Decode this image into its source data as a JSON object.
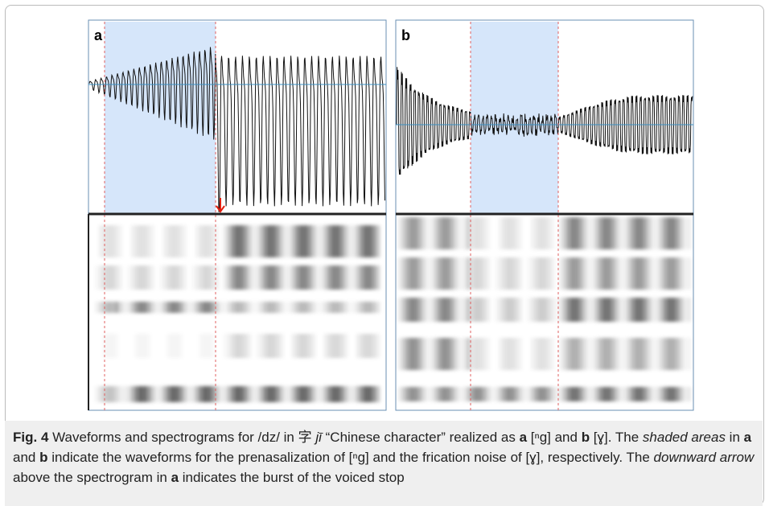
{
  "figure": {
    "panels": [
      {
        "label": "a"
      },
      {
        "label": "b"
      }
    ],
    "caption": {
      "parts": [
        "Fig. 4",
        " Waveforms and spectrograms for /dz/ in 字 ",
        "jī",
        " “Chinese character” realized as ",
        "a",
        " [ⁿg] and ",
        "b",
        " [ɣ]. The ",
        "shaded areas",
        " in ",
        "a",
        " and ",
        "b",
        " indicate the waveforms for the prenasalization of [ⁿg] and the frication noise of [ɣ], respectively. The ",
        "downward arrow",
        " above the spectrogram in ",
        "a",
        " indicates the burst of the voiced stop"
      ]
    }
  }
}
